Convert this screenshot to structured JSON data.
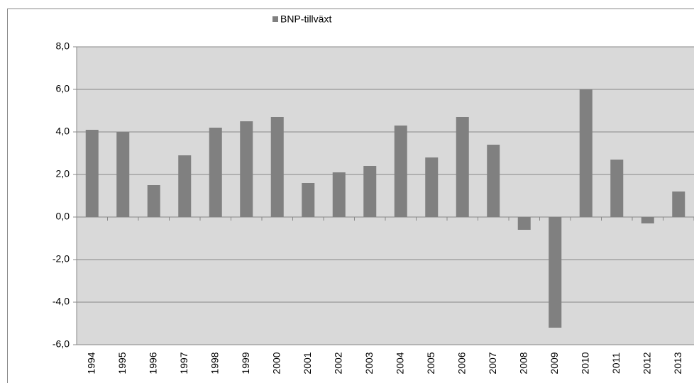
{
  "chart_data": {
    "type": "bar",
    "categories": [
      "1994",
      "1995",
      "1996",
      "1997",
      "1998",
      "1999",
      "2000",
      "2001",
      "2002",
      "2003",
      "2004",
      "2005",
      "2006",
      "2007",
      "2008",
      "2009",
      "2010",
      "2011",
      "2012",
      "2013"
    ],
    "series": [
      {
        "name": "BNP-tillväxt",
        "color": "#808080",
        "values": [
          4.1,
          4.0,
          1.5,
          2.9,
          4.2,
          4.5,
          4.7,
          1.6,
          2.1,
          2.4,
          4.3,
          2.8,
          4.7,
          3.4,
          -0.6,
          -5.2,
          6.0,
          2.7,
          -0.3,
          1.2
        ]
      }
    ],
    "ylim": [
      -6,
      8
    ],
    "yticks": [
      {
        "value": -6,
        "label": "-6,0"
      },
      {
        "value": -4,
        "label": "-4,0"
      },
      {
        "value": -2,
        "label": "-2,0"
      },
      {
        "value": 0,
        "label": "0,0"
      },
      {
        "value": 2,
        "label": "2,0"
      },
      {
        "value": 4,
        "label": "4,0"
      },
      {
        "value": 6,
        "label": "6,0"
      },
      {
        "value": 8,
        "label": "8,0"
      }
    ],
    "grid": true,
    "legend": "top"
  }
}
